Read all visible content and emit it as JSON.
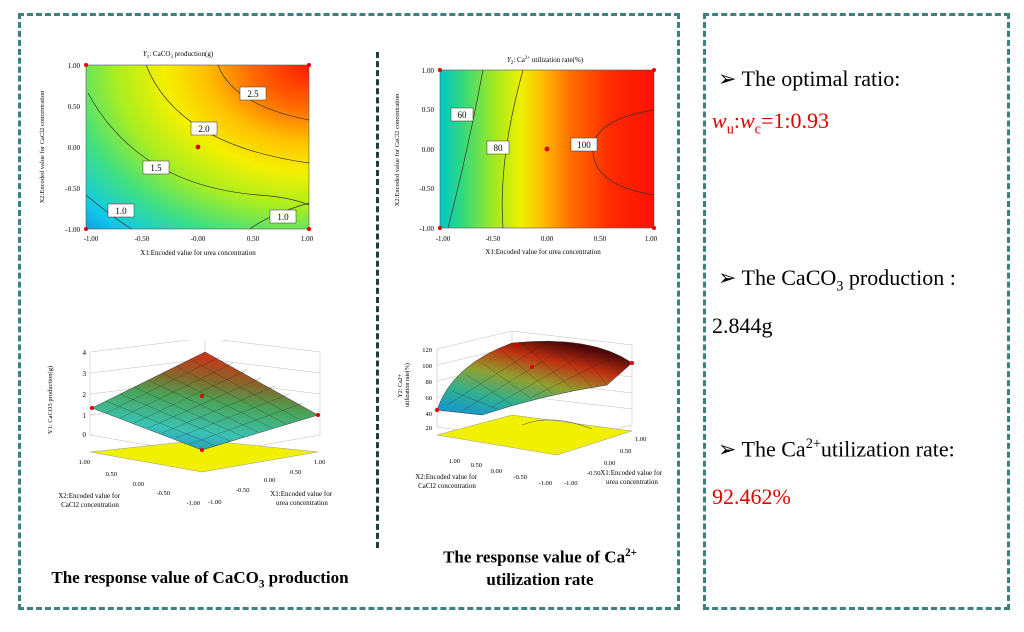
{
  "contour1": {
    "title_y": "Y",
    "title_sub": "1",
    "title_rest": ": CaCO",
    "title_sub2": "3",
    "title_end": " production(g)",
    "ylabel": "X2:Encoded value for CaCl2 concentration",
    "xlabel": "X1:Encoded value for urea concentration",
    "xticks": [
      "-1.00",
      "-0.50",
      "-0.00",
      "0.50",
      "1.00"
    ],
    "yticks": [
      "1.00",
      "0.50",
      "0.00",
      "-0.50",
      "-1.00"
    ],
    "contour_labels": [
      "2.5",
      "2.0",
      "1.5",
      "1.0",
      "1.0"
    ]
  },
  "contour2": {
    "title_y": "Y",
    "title_sub": "2",
    "title_rest": ": Ca",
    "title_sup": "2+",
    "title_end": " utilization rate(%)",
    "ylabel": "X2:Encoded value for CaCl2 concentration",
    "xlabel": "X1:Encoded value for urea concentration",
    "xticks": [
      "-1.00",
      "-0.50",
      "0.00",
      "0.50",
      "1.00"
    ],
    "yticks": [
      "1.00",
      "0.50",
      "0.00",
      "-0.50",
      "-1.00"
    ],
    "contour_labels": [
      "60",
      "80",
      "100"
    ]
  },
  "surface1": {
    "zlabel": "Y1: CaCO3 production(g)",
    "zticks": [
      "4",
      "3",
      "2",
      "1",
      "0"
    ],
    "x2label_line1": "X2:Encoded value for",
    "x2label_line2": "CaCl2 concentration",
    "x1label_line1": "X1:Encoded value for",
    "x1label_line2": "urea concentration",
    "x2ticks": [
      "1.00",
      "0.50",
      "0.00",
      "-0.50",
      "-1.00"
    ],
    "x1ticks": [
      "1.00",
      "0.50",
      "0.00",
      "-0.50",
      "-1.00"
    ]
  },
  "surface2": {
    "zlabel_line1": "Y2: Ca2+",
    "zlabel_line2": "utilization rate(%)",
    "zticks": [
      "120",
      "100",
      "80",
      "60",
      "40",
      "20"
    ],
    "x2label_line1": "X2:Encoded value for",
    "x2label_line2": "CaCl2 concentration",
    "x1label_line1": "X1:Encoded value for",
    "x1label_line2": "urea concentration",
    "x2ticks": [
      "1.00",
      "0.50",
      "0.00",
      "-0.50",
      "-1.00"
    ],
    "x1ticks": [
      "1.00",
      "0.50",
      "0.00",
      "-0.50",
      "-1.00"
    ]
  },
  "captions": {
    "left_pre": "The response value of CaCO",
    "left_sub": "3",
    "left_post": " production",
    "right_line1_pre": "The response value of Ca",
    "right_line1_sup": "2+",
    "right_line2": "utilization rate"
  },
  "results": {
    "bullet": "➢",
    "optimal_label": "The optimal ratio:",
    "ratio_w": "w",
    "ratio_u": "u",
    "ratio_colon": ":",
    "ratio_c": "c",
    "ratio_value": "=1:0.93",
    "caco3_label_pre": "The CaCO",
    "caco3_label_sub": "3",
    "caco3_label_post": " production :",
    "caco3_value": "2.844g",
    "ca_label_pre": "The Ca",
    "ca_label_sup": "2+",
    "ca_label_post": "utilization rate:",
    "ca_value": "92.462%"
  },
  "colors": {
    "frame": "#3f7f7f",
    "result_red": "#e00000"
  }
}
